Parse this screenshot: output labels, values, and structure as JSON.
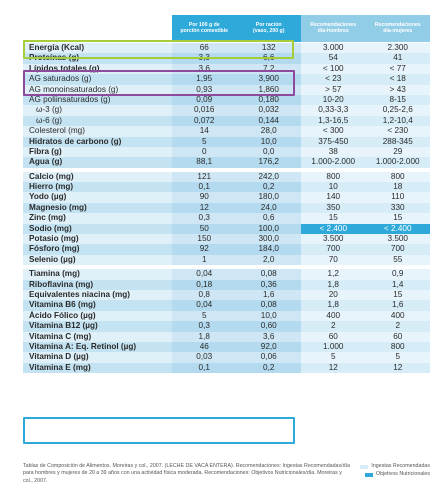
{
  "header": [
    "Por 100 g de\nporción comestible",
    "Por ración\n(vaso, 200 g)",
    "Recomendaciones\ndía-hombres",
    "Recomendaciones\ndía-mujeres"
  ],
  "sections": [
    [
      {
        "label": "Energía (Kcal)",
        "bold": true,
        "v": [
          "66",
          "132",
          "3.000",
          "2.300"
        ]
      },
      {
        "label": "Proteínas (g)",
        "bold": true,
        "v": [
          "3,3",
          "6,6",
          "54",
          "41"
        ]
      },
      {
        "label": "Lípidos totales (g)",
        "bold": true,
        "v": [
          "3,6",
          "7,2",
          "< 100",
          "< 77"
        ]
      },
      {
        "label": "AG saturados (g)",
        "bold": false,
        "v": [
          "1,95",
          "3,900",
          "< 23",
          "< 18"
        ]
      },
      {
        "label": "AG monoinsaturados (g)",
        "bold": false,
        "v": [
          "0,93",
          "1,860",
          "> 57",
          "> 43"
        ]
      },
      {
        "label": "AG poliinsaturados (g)",
        "bold": false,
        "v": [
          "0,09",
          "0,180",
          "10-20",
          "8-15"
        ]
      },
      {
        "label": "ω-3 (g)",
        "bold": false,
        "sub": true,
        "v": [
          "0,016",
          "0,032",
          "0,33-3,3",
          "0,25-2,6"
        ]
      },
      {
        "label": "ω-6 (g)",
        "bold": false,
        "sub": true,
        "v": [
          "0,072",
          "0,144",
          "1,3-16,5",
          "1,2-10,4"
        ]
      },
      {
        "label": "Colesterol (mg)",
        "bold": false,
        "v": [
          "14",
          "28,0",
          "< 300",
          "< 230"
        ]
      },
      {
        "label": "Hidratos de carbono (g)",
        "bold": true,
        "v": [
          "5",
          "10,0",
          "375-450",
          "288-345"
        ]
      },
      {
        "label": "Fibra (g)",
        "bold": true,
        "v": [
          "0",
          "0,0",
          "38",
          "29"
        ]
      },
      {
        "label": "Agua (g)",
        "bold": true,
        "v": [
          "88,1",
          "176,2",
          "1.000-2.000",
          "1.000-2.000"
        ]
      }
    ],
    [
      {
        "label": "Calcio (mg)",
        "bold": true,
        "v": [
          "121",
          "242,0",
          "800",
          "800"
        ]
      },
      {
        "label": "Hierro (mg)",
        "bold": true,
        "v": [
          "0,1",
          "0,2",
          "10",
          "18"
        ]
      },
      {
        "label": "Yodo (µg)",
        "bold": true,
        "v": [
          "90",
          "180,0",
          "140",
          "110"
        ]
      },
      {
        "label": "Magnesio (mg)",
        "bold": true,
        "v": [
          "12",
          "24,0",
          "350",
          "330"
        ]
      },
      {
        "label": "Zinc (mg)",
        "bold": true,
        "v": [
          "0,3",
          "0,6",
          "15",
          "15"
        ]
      },
      {
        "label": "Sodio (mg)",
        "bold": true,
        "v": [
          "50",
          "100,0",
          "< 2.400",
          "< 2.400"
        ],
        "hl": true
      },
      {
        "label": "Potasio (mg)",
        "bold": true,
        "v": [
          "150",
          "300,0",
          "3.500",
          "3.500"
        ]
      },
      {
        "label": "Fósforo (mg)",
        "bold": true,
        "v": [
          "92",
          "184,0",
          "700",
          "700"
        ]
      },
      {
        "label": "Selenio (µg)",
        "bold": true,
        "v": [
          "1",
          "2,0",
          "70",
          "55"
        ]
      }
    ],
    [
      {
        "label": "Tiamina (mg)",
        "bold": true,
        "v": [
          "0,04",
          "0,08",
          "1,2",
          "0,9"
        ]
      },
      {
        "label": "Riboflavina (mg)",
        "bold": true,
        "v": [
          "0,18",
          "0,36",
          "1,8",
          "1,4"
        ]
      },
      {
        "label": "Equivalentes niacina (mg)",
        "bold": true,
        "v": [
          "0,8",
          "1,6",
          "20",
          "15"
        ]
      },
      {
        "label": "Vitamina B6 (mg)",
        "bold": true,
        "v": [
          "0,04",
          "0,08",
          "1,8",
          "1,6"
        ]
      },
      {
        "label": "Ácido Fólico (µg)",
        "bold": true,
        "v": [
          "5",
          "10,0",
          "400",
          "400"
        ]
      },
      {
        "label": "Vitamina B12 (µg)",
        "bold": true,
        "v": [
          "0,3",
          "0,60",
          "2",
          "2"
        ]
      },
      {
        "label": "Vitamina C (mg)",
        "bold": true,
        "v": [
          "1,8",
          "3,6",
          "60",
          "60"
        ]
      },
      {
        "label": "Vitamina A: Eq. Retinol (µg)",
        "bold": true,
        "v": [
          "46",
          "92,0",
          "1.000",
          "800"
        ]
      },
      {
        "label": "Vitamina D (µg)",
        "bold": true,
        "v": [
          "0,03",
          "0,06",
          "5",
          "5"
        ]
      },
      {
        "label": "Vitamina E (mg)",
        "bold": true,
        "v": [
          "0,1",
          "0,2",
          "12",
          "12"
        ]
      }
    ]
  ],
  "footnote": "Tablas de Composición de Alimentos. Moreiras y col., 2007. (LECHE DE VACA ENTERA). Recomendaciones: Ingestas Recomendadas/día para hombres y mujeres de 20 a 39 años con una actividad física moderada. Recomendaciones: Objetivos Nutricionales/día. Moreiras y col., 2007.",
  "legend": [
    "Ingestas Recomendadas",
    "Objetivos Nutricionales"
  ]
}
